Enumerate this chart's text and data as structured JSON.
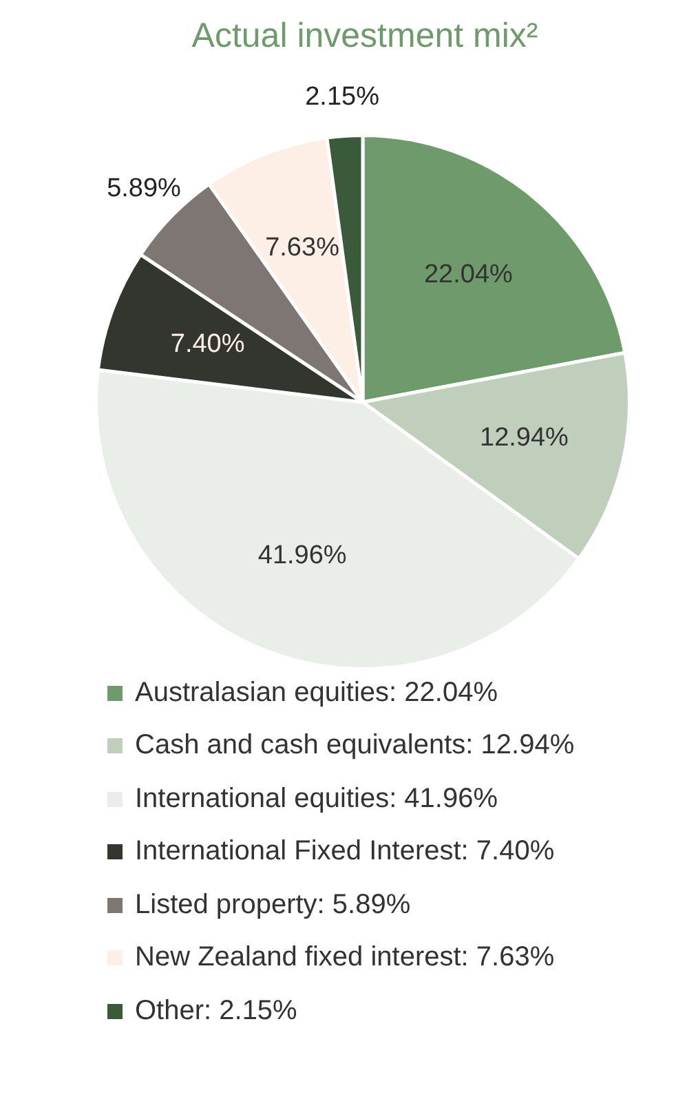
{
  "chart_data": {
    "type": "pie",
    "title": "Actual investment mix²",
    "categories": [
      "Australasian equities",
      "Cash and cash equivalents",
      "International equities",
      "International Fixed Interest",
      "Listed property",
      "New Zealand fixed interest",
      "Other"
    ],
    "values": [
      22.04,
      12.94,
      41.96,
      7.4,
      5.89,
      7.63,
      2.15
    ],
    "value_labels": [
      "22.04%",
      "12.94%",
      "41.96%",
      "7.40%",
      "5.89%",
      "7.63%",
      "2.15%"
    ],
    "colors": [
      "#6f9a6c",
      "#bfcfbb",
      "#e9eee8",
      "#33352f",
      "#7d7673",
      "#fdefe6",
      "#3a5a3a"
    ],
    "legend": "bottom"
  }
}
